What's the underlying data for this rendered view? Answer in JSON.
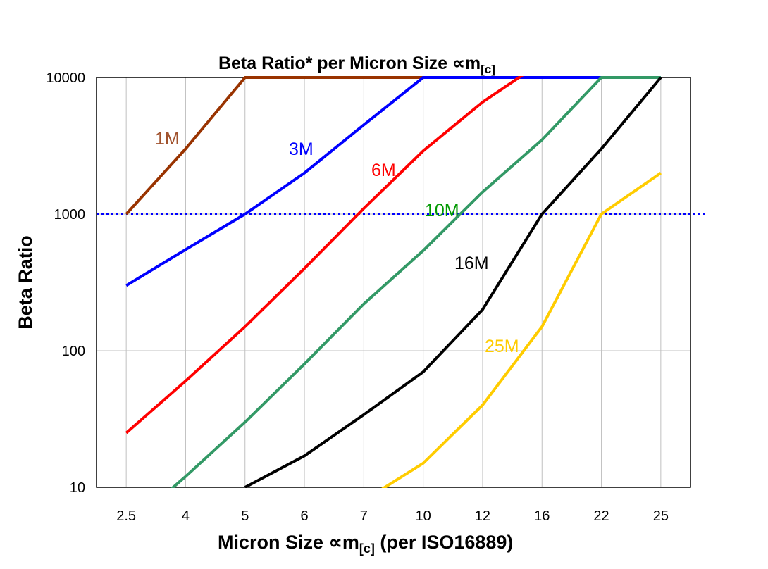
{
  "chart_data": {
    "type": "line",
    "title": "Beta Ratio* per Micron Size ",
    "title_symbol": "∝m",
    "title_sub": "[c]",
    "xlabel": "Micron Size ",
    "xlabel_symbol": "∝m",
    "xlabel_sub": "[c]",
    "xlabel_suffix": " (per ISO16889)",
    "ylabel": "Beta Ratio",
    "y_scale": "log",
    "ylim": [
      10,
      10000
    ],
    "grid": true,
    "categories": [
      "2.5",
      "4",
      "5",
      "6",
      "7",
      "10",
      "12",
      "16",
      "22",
      "25"
    ],
    "y_tick_labels": [
      "10000",
      "1000",
      "100",
      "10"
    ],
    "reference_line": {
      "value": 1000,
      "color": "#0000ff",
      "style": "dotted"
    },
    "series": [
      {
        "name": "1M",
        "color": "#993300",
        "label_color": "#a0522d",
        "values": [
          1000,
          3000,
          10000,
          10000,
          10000,
          10000,
          10000,
          10000,
          10000,
          10000
        ]
      },
      {
        "name": "3M",
        "color": "#0000ff",
        "label_color": "#0000ff",
        "values": [
          300,
          550,
          1000,
          2000,
          4500,
          10000,
          10000,
          10000,
          10000,
          10000
        ]
      },
      {
        "name": "6M",
        "color": "#ff0000",
        "label_color": "#ff0000",
        "values": [
          25,
          60,
          150,
          400,
          1100,
          2900,
          6600,
          13000,
          13000,
          13000
        ]
      },
      {
        "name": "10M",
        "color": "#339966",
        "label_color": "#009900",
        "values": [
          5,
          12,
          30,
          80,
          220,
          540,
          1450,
          3500,
          10000,
          10000
        ]
      },
      {
        "name": "16M",
        "color": "#000000",
        "label_color": "#000000",
        "values": [
          null,
          null,
          10,
          17,
          34,
          70,
          200,
          1000,
          3000,
          10000
        ]
      },
      {
        "name": "25M",
        "color": "#ffcc00",
        "label_color": "#ffcc00",
        "values": [
          null,
          null,
          null,
          null,
          8,
          15,
          40,
          150,
          1000,
          2000
        ]
      }
    ]
  }
}
